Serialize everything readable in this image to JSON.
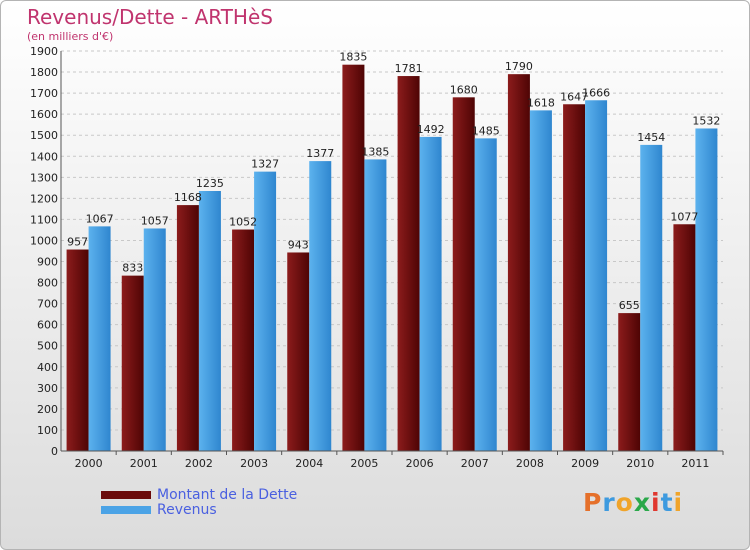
{
  "header": {
    "title": "Revenus/Dette - ARTHèS",
    "subtitle": "(en milliers d'€)"
  },
  "colors": {
    "dette": "#6b0a0a",
    "revenus": "#4ba3e6",
    "title": "#c0346e",
    "legend_text": "#4a60e0"
  },
  "chart_data": {
    "type": "bar",
    "title": "Revenus/Dette - ARTHèS",
    "ylabel": "(en milliers d'€)",
    "categories": [
      "2000",
      "2001",
      "2002",
      "2003",
      "2004",
      "2005",
      "2006",
      "2007",
      "2008",
      "2009",
      "2010",
      "2011"
    ],
    "series": [
      {
        "name": "Montant de la Dette",
        "values": [
          957,
          833,
          1168,
          1052,
          943,
          1835,
          1781,
          1680,
          1790,
          1647,
          655,
          1077
        ],
        "color": "#6b0a0a"
      },
      {
        "name": "Revenus",
        "values": [
          1067,
          1057,
          1235,
          1327,
          1377,
          1385,
          1492,
          1485,
          1618,
          1666,
          1454,
          1532
        ],
        "color": "#4ba3e6"
      }
    ],
    "ylim": [
      0,
      1900
    ],
    "ytick_step": 100,
    "grid": true,
    "legend_position": "bottom-left"
  },
  "legend": [
    {
      "label": "Montant de la Dette",
      "color": "#6b0a0a"
    },
    {
      "label": "Revenus",
      "color": "#4ba3e6"
    }
  ],
  "brand": {
    "letters": [
      "P",
      "r",
      "o",
      "x",
      "i",
      "t",
      "i"
    ],
    "colors": [
      "#e5702a",
      "#3d9adf",
      "#f0a42a",
      "#2aa84a",
      "#e0372f",
      "#3d9adf",
      "#f0a42a"
    ]
  }
}
